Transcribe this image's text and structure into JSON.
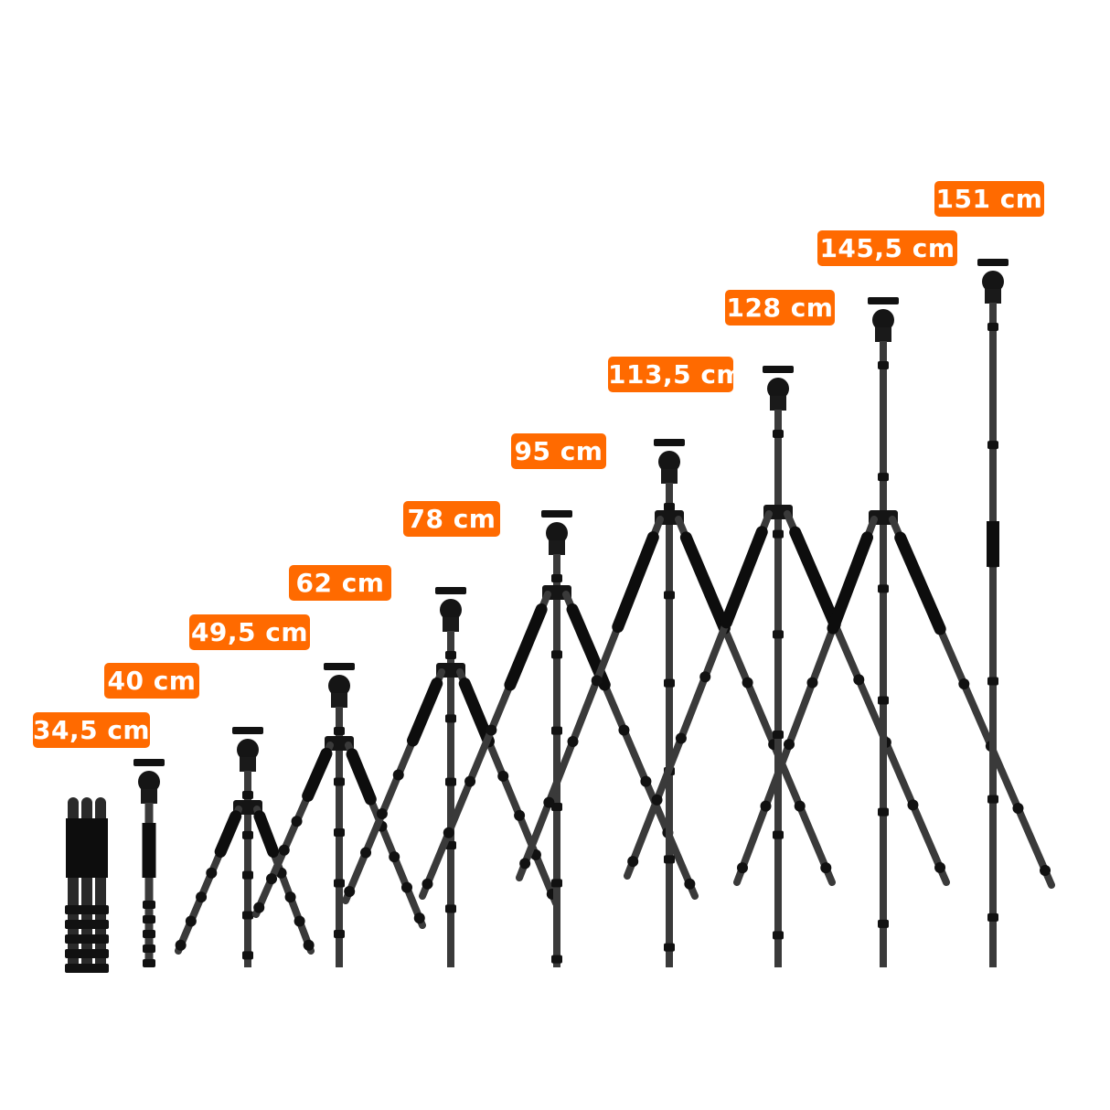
{
  "accent_color": "#ff6a00",
  "heights": [
    {
      "label": "34,5 cm",
      "state": "folded"
    },
    {
      "label": "40 cm",
      "state": "monopod"
    },
    {
      "label": "49,5 cm",
      "state": "tripod"
    },
    {
      "label": "62 cm",
      "state": "tripod"
    },
    {
      "label": "78 cm",
      "state": "tripod"
    },
    {
      "label": "95 cm",
      "state": "tripod"
    },
    {
      "label": "113,5 cm",
      "state": "tripod"
    },
    {
      "label": "128 cm",
      "state": "tripod"
    },
    {
      "label": "145,5 cm",
      "state": "tripod"
    },
    {
      "label": "151 cm",
      "state": "tripod-center-column-extended"
    }
  ]
}
